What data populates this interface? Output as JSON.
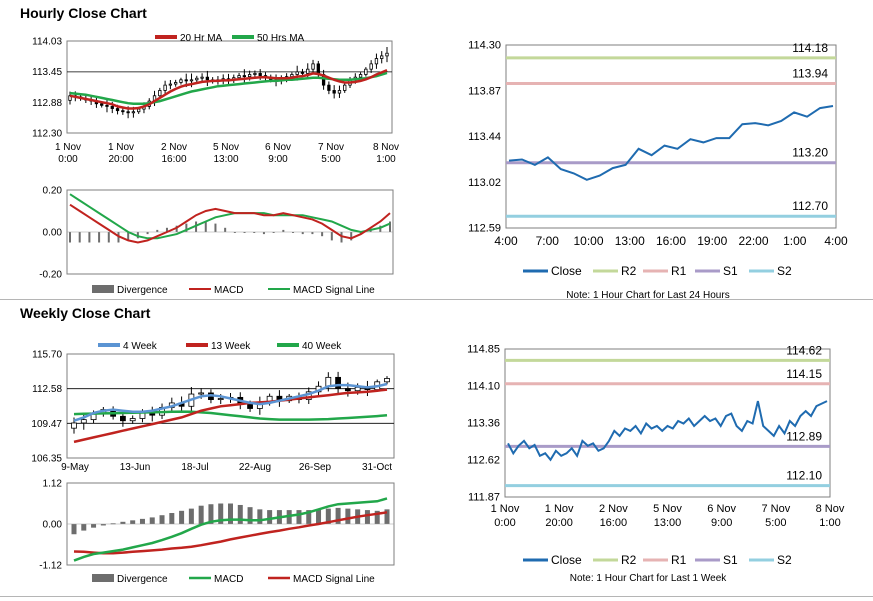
{
  "sections": {
    "hourly_title": "Hourly Close Chart",
    "weekly_title": "Weekly Close Chart"
  },
  "colors": {
    "red": "#c0231f",
    "green": "#22a74a",
    "blue": "#1f6bb0",
    "blue_light": "#5b94d3",
    "gray": "#6d6d6d",
    "r2": "#c3d89a",
    "r1": "#e6b3b3",
    "s1": "#a99bc8",
    "s2": "#93cfe0"
  },
  "chart_data": [
    {
      "id": "hourly_price",
      "type": "candlestick",
      "legend": [
        "20 Hr MA",
        "50 Hrs MA"
      ],
      "ylim": [
        112.3,
        114.03
      ],
      "yticks": [
        "114.03",
        "113.45",
        "112.88",
        "112.30"
      ],
      "xticks": [
        [
          "1 Nov",
          "0:00"
        ],
        [
          "1 Nov",
          "20:00"
        ],
        [
          "2 Nov",
          "16:00"
        ],
        [
          "5 Nov",
          "13:00"
        ],
        [
          "6 Nov",
          "9:00"
        ],
        [
          "7 Nov",
          "5:00"
        ],
        [
          "8 Nov",
          "1:00"
        ]
      ],
      "close": [
        113.0,
        112.98,
        112.95,
        112.92,
        112.9,
        112.85,
        112.82,
        112.8,
        112.76,
        112.72,
        112.7,
        112.68,
        112.7,
        112.75,
        112.8,
        112.9,
        113.0,
        113.1,
        113.2,
        113.22,
        113.25,
        113.3,
        113.28,
        113.3,
        113.33,
        113.35,
        113.3,
        113.28,
        113.3,
        113.32,
        113.3,
        113.34,
        113.38,
        113.36,
        113.4,
        113.42,
        113.38,
        113.35,
        113.3,
        113.28,
        113.32,
        113.36,
        113.4,
        113.45,
        113.42,
        113.5,
        113.6,
        113.4,
        113.2,
        113.1,
        113.05,
        113.1,
        113.2,
        113.3,
        113.35,
        113.4,
        113.5,
        113.6,
        113.7,
        113.75,
        113.8
      ],
      "ma20": [
        113.0,
        112.98,
        112.96,
        112.94,
        112.92,
        112.9,
        112.88,
        112.86,
        112.84,
        112.8,
        112.78,
        112.76,
        112.76,
        112.77,
        112.8,
        112.84,
        112.9,
        112.96,
        113.02,
        113.08,
        113.13,
        113.17,
        113.2,
        113.22,
        113.24,
        113.26,
        113.27,
        113.28,
        113.28,
        113.29,
        113.29,
        113.3,
        113.31,
        113.32,
        113.33,
        113.34,
        113.35,
        113.35,
        113.34,
        113.33,
        113.33,
        113.33,
        113.34,
        113.36,
        113.37,
        113.39,
        113.42,
        113.41,
        113.38,
        113.34,
        113.3,
        113.27,
        113.25,
        113.25,
        113.26,
        113.28,
        113.31,
        113.35,
        113.4,
        113.44,
        113.48
      ],
      "ma50": [
        113.05,
        113.04,
        113.03,
        113.02,
        113.0,
        112.98,
        112.96,
        112.94,
        112.92,
        112.9,
        112.88,
        112.86,
        112.85,
        112.85,
        112.85,
        112.86,
        112.88,
        112.9,
        112.93,
        112.96,
        112.99,
        113.02,
        113.05,
        113.08,
        113.1,
        113.12,
        113.14,
        113.16,
        113.18,
        113.19,
        113.2,
        113.21,
        113.22,
        113.23,
        113.24,
        113.25,
        113.26,
        113.27,
        113.28,
        113.28,
        113.29,
        113.3,
        113.3,
        113.31,
        113.32,
        113.33,
        113.34,
        113.34,
        113.33,
        113.32,
        113.31,
        113.3,
        113.3,
        113.3,
        113.31,
        113.32,
        113.33,
        113.35,
        113.37,
        113.4,
        113.43
      ]
    },
    {
      "id": "hourly_macd",
      "type": "line+bar",
      "ylim": [
        -0.2,
        0.2
      ],
      "yticks": [
        "0.20",
        "0.00",
        "-0.20"
      ],
      "legend": [
        "Divergence",
        "MACD",
        "MACD Signal Line"
      ],
      "series": [
        {
          "name": "MACD",
          "values": [
            0.13,
            0.1,
            0.07,
            0.04,
            0.01,
            -0.02,
            -0.04,
            -0.05,
            -0.04,
            -0.02,
            0.0,
            0.02,
            0.05,
            0.08,
            0.1,
            0.11,
            0.1,
            0.09,
            0.09,
            0.09,
            0.08,
            0.08,
            0.09,
            0.08,
            0.07,
            0.06,
            0.04,
            0.01,
            -0.02,
            -0.03,
            -0.01,
            0.02,
            0.05,
            0.09
          ]
        },
        {
          "name": "MACD Signal Line",
          "values": [
            0.18,
            0.15,
            0.12,
            0.09,
            0.06,
            0.03,
            0.0,
            -0.02,
            -0.03,
            -0.03,
            -0.02,
            -0.01,
            0.01,
            0.03,
            0.05,
            0.07,
            0.08,
            0.09,
            0.09,
            0.09,
            0.09,
            0.08,
            0.08,
            0.08,
            0.08,
            0.07,
            0.06,
            0.05,
            0.03,
            0.01,
            0.0,
            0.01,
            0.02,
            0.04
          ]
        }
      ],
      "divergence": [
        -0.05,
        -0.05,
        -0.05,
        -0.05,
        -0.05,
        -0.05,
        -0.04,
        -0.03,
        -0.01,
        0.01,
        0.02,
        0.03,
        0.04,
        0.05,
        0.05,
        0.04,
        0.02,
        0.0,
        0.0,
        0.0,
        -0.01,
        0.0,
        0.01,
        0.0,
        -0.01,
        -0.01,
        -0.02,
        -0.04,
        -0.05,
        -0.04,
        -0.01,
        0.01,
        0.03,
        0.05
      ]
    },
    {
      "id": "hourly_24h",
      "type": "line",
      "ylim": [
        112.59,
        114.3
      ],
      "yticks": [
        "114.30",
        "113.87",
        "113.44",
        "113.02",
        "112.59"
      ],
      "xticks": [
        "4:00",
        "7:00",
        "10:00",
        "13:00",
        "16:00",
        "19:00",
        "22:00",
        "1:00",
        "4:00"
      ],
      "close": [
        113.22,
        113.23,
        113.18,
        113.25,
        113.14,
        113.1,
        113.04,
        113.08,
        113.15,
        113.18,
        113.33,
        113.27,
        113.36,
        113.33,
        113.42,
        113.39,
        113.43,
        113.43,
        113.56,
        113.57,
        113.55,
        113.59,
        113.67,
        113.63,
        113.71,
        113.73
      ],
      "levels": [
        {
          "name": "R2",
          "value": 114.18,
          "label": "114.18"
        },
        {
          "name": "R1",
          "value": 113.94,
          "label": "113.94"
        },
        {
          "name": "S1",
          "value": 113.2,
          "label": "113.20"
        },
        {
          "name": "S2",
          "value": 112.7,
          "label": "112.70"
        }
      ],
      "legend": [
        "Close",
        "R2",
        "R1",
        "S1",
        "S2"
      ],
      "note": "Note: 1 Hour Chart for Last 24 Hours"
    },
    {
      "id": "weekly_price",
      "type": "candlestick",
      "legend": [
        "4 Week",
        "13 Week",
        "40 Week"
      ],
      "ylim": [
        106.35,
        115.7
      ],
      "yticks": [
        "115.70",
        "112.58",
        "109.47",
        "106.35"
      ],
      "xticks": [
        "9-May",
        "13-Jun",
        "18-Jul",
        "22-Aug",
        "26-Sep",
        "31-Oct"
      ],
      "close": [
        109.5,
        109.8,
        110.3,
        110.7,
        110.1,
        109.7,
        109.9,
        110.4,
        110.2,
        110.9,
        111.3,
        111.0,
        112.1,
        112.2,
        111.6,
        111.7,
        111.8,
        111.2,
        110.8,
        111.3,
        111.9,
        111.5,
        111.9,
        111.6,
        112.3,
        112.8,
        113.6,
        112.6,
        112.4,
        112.7,
        112.5,
        113.2,
        113.5
      ],
      "ma4": [
        109.7,
        110.0,
        110.4,
        110.6,
        110.7,
        110.6,
        110.5,
        110.5,
        110.6,
        110.8,
        111.0,
        111.3,
        111.6,
        111.9,
        112.0,
        111.9,
        111.7,
        111.5,
        111.3,
        111.2,
        111.3,
        111.5,
        111.7,
        111.9,
        112.1,
        112.4,
        112.8,
        112.9,
        112.9,
        112.8,
        112.7,
        112.8,
        113.0
      ],
      "ma13": [
        107.8,
        108.0,
        108.2,
        108.4,
        108.6,
        108.8,
        109.0,
        109.2,
        109.4,
        109.6,
        109.8,
        110.0,
        110.3,
        110.6,
        110.8,
        111.0,
        111.1,
        111.2,
        111.3,
        111.35,
        111.4,
        111.5,
        111.6,
        111.7,
        111.8,
        111.9,
        112.0,
        112.1,
        112.2,
        112.25,
        112.3,
        112.4,
        112.5
      ],
      "ma40": [
        110.3,
        110.32,
        110.34,
        110.36,
        110.38,
        110.4,
        110.42,
        110.44,
        110.46,
        110.48,
        110.5,
        110.52,
        110.5,
        110.45,
        110.4,
        110.3,
        110.2,
        110.1,
        110.0,
        109.9,
        109.85,
        109.8,
        109.8,
        109.8,
        109.8,
        109.82,
        109.85,
        109.9,
        109.95,
        110.0,
        110.05,
        110.12,
        110.2
      ]
    },
    {
      "id": "weekly_macd",
      "type": "line+bar",
      "ylim": [
        -1.12,
        1.12
      ],
      "yticks": [
        "1.12",
        "0.00",
        "-1.12"
      ],
      "legend": [
        "Divergence",
        "MACD",
        "MACD Signal Line"
      ],
      "series": [
        {
          "name": "MACD",
          "values": [
            -1.0,
            -0.9,
            -0.82,
            -0.78,
            -0.74,
            -0.7,
            -0.64,
            -0.58,
            -0.52,
            -0.44,
            -0.35,
            -0.25,
            -0.13,
            -0.02,
            0.06,
            0.1,
            0.12,
            0.12,
            0.1,
            0.1,
            0.14,
            0.18,
            0.22,
            0.26,
            0.32,
            0.4,
            0.48,
            0.54,
            0.56,
            0.58,
            0.6,
            0.62,
            0.7
          ]
        },
        {
          "name": "MACD Signal Line",
          "values": [
            -0.75,
            -0.76,
            -0.78,
            -0.8,
            -0.8,
            -0.78,
            -0.76,
            -0.74,
            -0.72,
            -0.7,
            -0.67,
            -0.65,
            -0.62,
            -0.58,
            -0.53,
            -0.48,
            -0.42,
            -0.37,
            -0.32,
            -0.27,
            -0.22,
            -0.18,
            -0.13,
            -0.09,
            -0.04,
            0.0,
            0.05,
            0.1,
            0.15,
            0.2,
            0.24,
            0.28,
            0.32
          ]
        }
      ],
      "divergence": [
        -0.28,
        -0.18,
        -0.1,
        -0.04,
        0.02,
        0.06,
        0.1,
        0.14,
        0.18,
        0.24,
        0.3,
        0.36,
        0.42,
        0.5,
        0.54,
        0.56,
        0.56,
        0.52,
        0.46,
        0.4,
        0.38,
        0.38,
        0.38,
        0.38,
        0.38,
        0.4,
        0.42,
        0.44,
        0.42,
        0.4,
        0.38,
        0.36,
        0.4
      ]
    },
    {
      "id": "weekly_1w",
      "type": "line",
      "ylim": [
        111.87,
        114.85
      ],
      "yticks": [
        "114.85",
        "114.10",
        "113.36",
        "112.62",
        "111.87"
      ],
      "xticks": [
        [
          "1 Nov",
          "0:00"
        ],
        [
          "1 Nov",
          "20:00"
        ],
        [
          "2 Nov",
          "16:00"
        ],
        [
          "5 Nov",
          "13:00"
        ],
        [
          "6 Nov",
          "9:00"
        ],
        [
          "7 Nov",
          "5:00"
        ],
        [
          "8 Nov",
          "1:00"
        ]
      ],
      "close": [
        112.95,
        112.75,
        112.9,
        113.0,
        112.85,
        112.92,
        112.7,
        112.75,
        112.62,
        112.8,
        112.7,
        112.75,
        112.85,
        112.7,
        113.0,
        112.9,
        112.95,
        112.8,
        112.85,
        113.0,
        113.2,
        113.1,
        113.25,
        113.2,
        113.3,
        113.15,
        113.35,
        113.25,
        113.3,
        113.2,
        113.3,
        113.25,
        113.4,
        113.35,
        113.45,
        113.3,
        113.4,
        113.5,
        113.4,
        113.45,
        113.3,
        113.5,
        113.55,
        113.3,
        113.2,
        113.4,
        113.35,
        113.8,
        113.3,
        113.2,
        113.1,
        113.3,
        113.15,
        113.4,
        113.3,
        113.5,
        113.6,
        113.5,
        113.7,
        113.75,
        113.8
      ],
      "levels": [
        {
          "name": "R2",
          "value": 114.62,
          "label": "114.62"
        },
        {
          "name": "R1",
          "value": 114.15,
          "label": "114.15"
        },
        {
          "name": "S1",
          "value": 112.89,
          "label": "112.89"
        },
        {
          "name": "S2",
          "value": 112.1,
          "label": "112.10"
        }
      ],
      "legend": [
        "Close",
        "R2",
        "R1",
        "S1",
        "S2"
      ],
      "note": "Note: 1 Hour Chart for Last 1 Week"
    }
  ]
}
